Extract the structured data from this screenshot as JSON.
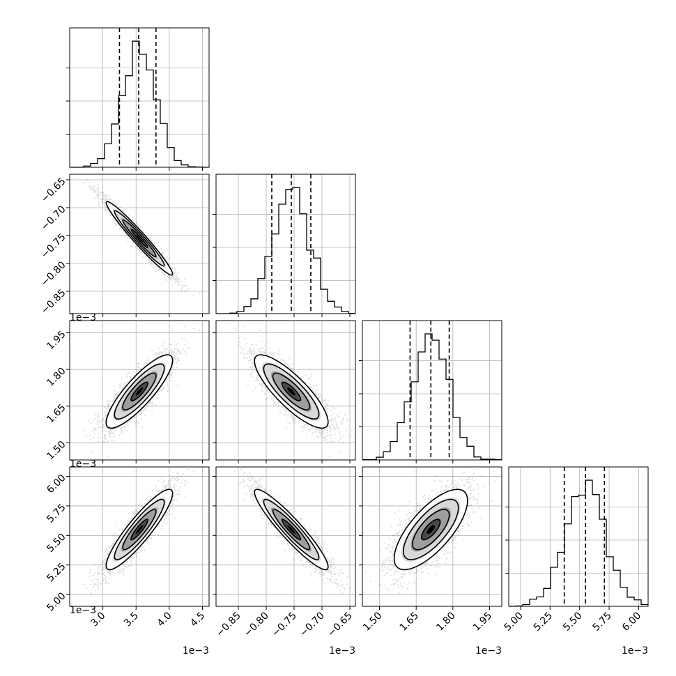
{
  "chart_data": {
    "type": "corner",
    "grid": true,
    "variables": [
      {
        "index": 0,
        "range": [
          2.5,
          4.6
        ],
        "mean": 3.55,
        "sd": 0.25,
        "quantiles": [
          3.25,
          3.54,
          3.8
        ],
        "ticks": [
          3.0,
          3.5,
          4.0,
          4.5
        ],
        "tick_labels": [
          "3.0",
          "3.5",
          "4.0",
          "4.5"
        ],
        "offset_label": "1e−3"
      },
      {
        "index": 1,
        "range": [
          -0.89,
          -0.64
        ],
        "mean": -0.755,
        "sd": 0.033,
        "quantiles": [
          -0.79,
          -0.755,
          -0.72
        ],
        "ticks": [
          -0.85,
          -0.8,
          -0.75,
          -0.7,
          -0.65
        ],
        "tick_labels": [
          "−0.85",
          "−0.80",
          "−0.75",
          "−0.70",
          "−0.65"
        ],
        "offset_label": "1e−3"
      },
      {
        "index": 2,
        "range": [
          1.43,
          2.0
        ],
        "mean": 1.71,
        "sd": 0.075,
        "quantiles": [
          1.625,
          1.71,
          1.785
        ],
        "ticks": [
          1.5,
          1.65,
          1.8,
          1.95
        ],
        "tick_labels": [
          "1.50",
          "1.65",
          "1.80",
          "1.95"
        ],
        "offset_label": "1e−3"
      },
      {
        "index": 3,
        "range": [
          4.9,
          6.08
        ],
        "mean": 5.55,
        "sd": 0.17,
        "quantiles": [
          5.37,
          5.55,
          5.71
        ],
        "ticks": [
          5.0,
          5.25,
          5.5,
          5.75,
          6.0
        ],
        "tick_labels": [
          "5.00",
          "5.25",
          "5.50",
          "5.75",
          "6.00"
        ],
        "offset_label": "1e−3"
      }
    ],
    "correlations": [
      {
        "pair": [
          0,
          1
        ],
        "rho": -0.97
      },
      {
        "pair": [
          0,
          2
        ],
        "rho": 0.85
      },
      {
        "pair": [
          1,
          2
        ],
        "rho": -0.83
      },
      {
        "pair": [
          0,
          3
        ],
        "rho": 0.9
      },
      {
        "pair": [
          1,
          3
        ],
        "rho": -0.93
      },
      {
        "pair": [
          2,
          3
        ],
        "rho": 0.72
      }
    ]
  }
}
